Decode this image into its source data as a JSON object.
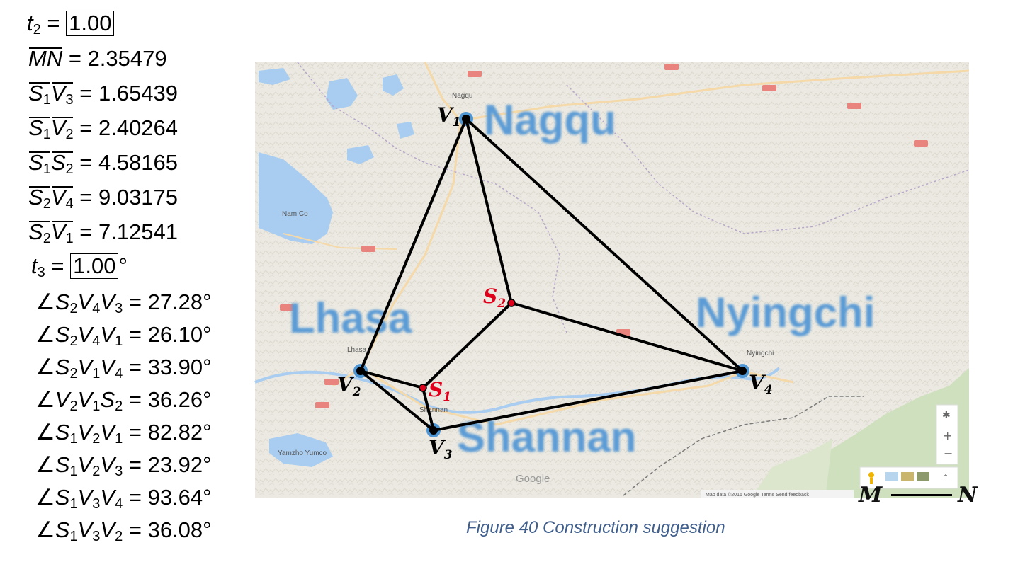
{
  "measurements": {
    "t2": {
      "label": "t",
      "sub": "2",
      "value": "1.00"
    },
    "mn": {
      "label": "MN",
      "value": "2.35479"
    },
    "segments": [
      {
        "a": "S",
        "a_sub": "1",
        "b": "V",
        "b_sub": "3",
        "value": "1.65439"
      },
      {
        "a": "S",
        "a_sub": "1",
        "b": "V",
        "b_sub": "2",
        "value": "2.40264"
      },
      {
        "a": "S",
        "a_sub": "1",
        "b": "S",
        "b_sub": "2",
        "value": "4.58165"
      },
      {
        "a": "S",
        "a_sub": "2",
        "b": "V",
        "b_sub": "4",
        "value": "9.03175"
      },
      {
        "a": "S",
        "a_sub": "2",
        "b": "V",
        "b_sub": "1",
        "value": "7.12541"
      }
    ],
    "t3": {
      "label": "t",
      "sub": "3",
      "value": "1.00",
      "unit": "°"
    },
    "angles": [
      {
        "p1": "S",
        "s1": "2",
        "p2": "V",
        "s2": "4",
        "p3": "V",
        "s3": "3",
        "value": "27.28°"
      },
      {
        "p1": "S",
        "s1": "2",
        "p2": "V",
        "s2": "4",
        "p3": "V",
        "s3": "1",
        "value": "26.10°"
      },
      {
        "p1": "S",
        "s1": "2",
        "p2": "V",
        "s2": "1",
        "p3": "V",
        "s3": "4",
        "value": "33.90°"
      },
      {
        "p1": "V",
        "s1": "2",
        "p2": "V",
        "s2": "1",
        "p3": "S",
        "s3": "2",
        "value": "36.26°"
      },
      {
        "p1": "S",
        "s1": "1",
        "p2": "V",
        "s2": "2",
        "p3": "V",
        "s3": "1",
        "value": "82.82°"
      },
      {
        "p1": "S",
        "s1": "1",
        "p2": "V",
        "s2": "2",
        "p3": "V",
        "s3": "3",
        "value": "23.92°"
      },
      {
        "p1": "S",
        "s1": "1",
        "p2": "V",
        "s2": "3",
        "p3": "V",
        "s3": "4",
        "value": "93.64°"
      },
      {
        "p1": "S",
        "s1": "1",
        "p2": "V",
        "s2": "3",
        "p3": "V",
        "s3": "2",
        "value": "36.08°"
      }
    ]
  },
  "map": {
    "cities": {
      "nagqu": "Nagqu",
      "lhasa": "Lhasa",
      "nyingchi": "Nyingchi",
      "shannan": "Shannan"
    },
    "small_labels": {
      "nagqu": "Nagqu",
      "lhasa": "Lhasa",
      "nyingchi": "Nyingchi",
      "shannan": "Shannan",
      "nam_co": "Nam Co",
      "yamzho": "Yamzho Yumco",
      "google": "Google",
      "footer": "Map data ©2016 Google    Terms    Send feedback"
    },
    "points": {
      "v1": {
        "letter": "V",
        "sub": "1"
      },
      "v2": {
        "letter": "V",
        "sub": "2"
      },
      "v3": {
        "letter": "V",
        "sub": "3"
      },
      "v4": {
        "letter": "V",
        "sub": "4"
      },
      "s1": {
        "letter": "S",
        "sub": "1"
      },
      "s2": {
        "letter": "S",
        "sub": "2"
      }
    },
    "colors": {
      "city_text": "#5b9bd5",
      "steiner": "#e0001b",
      "edge": "#000000",
      "land": "#ebe9e1",
      "water": "#a9cdf0"
    }
  },
  "caption": "Figure 40 Construction suggestion",
  "scale": {
    "m": "M",
    "n": "N"
  }
}
